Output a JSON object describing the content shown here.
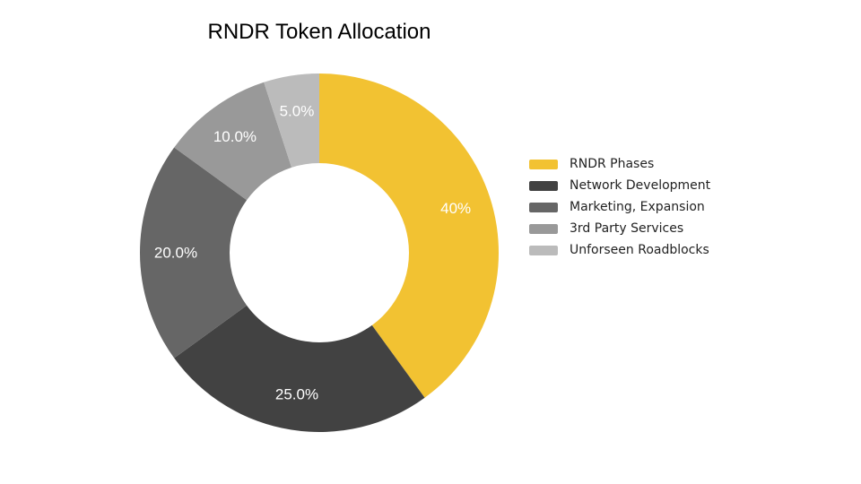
{
  "chart_data": {
    "type": "pie",
    "title": "RNDR Token Allocation",
    "donut": true,
    "legend_placement": "right",
    "slices": [
      {
        "name": "RNDR Phases",
        "value": 40,
        "label": "40%",
        "color": "#F2C232"
      },
      {
        "name": "Network Development",
        "value": 25,
        "label": "25.0%",
        "color": "#424242"
      },
      {
        "name": "Marketing, Expansion",
        "value": 20,
        "label": "20.0%",
        "color": "#666666"
      },
      {
        "name": "3rd Party Services",
        "value": 10,
        "label": "10.0%",
        "color": "#999999"
      },
      {
        "name": "Unforseen Roadblocks",
        "value": 5,
        "label": "5.0%",
        "color": "#BBBBBB"
      }
    ]
  }
}
